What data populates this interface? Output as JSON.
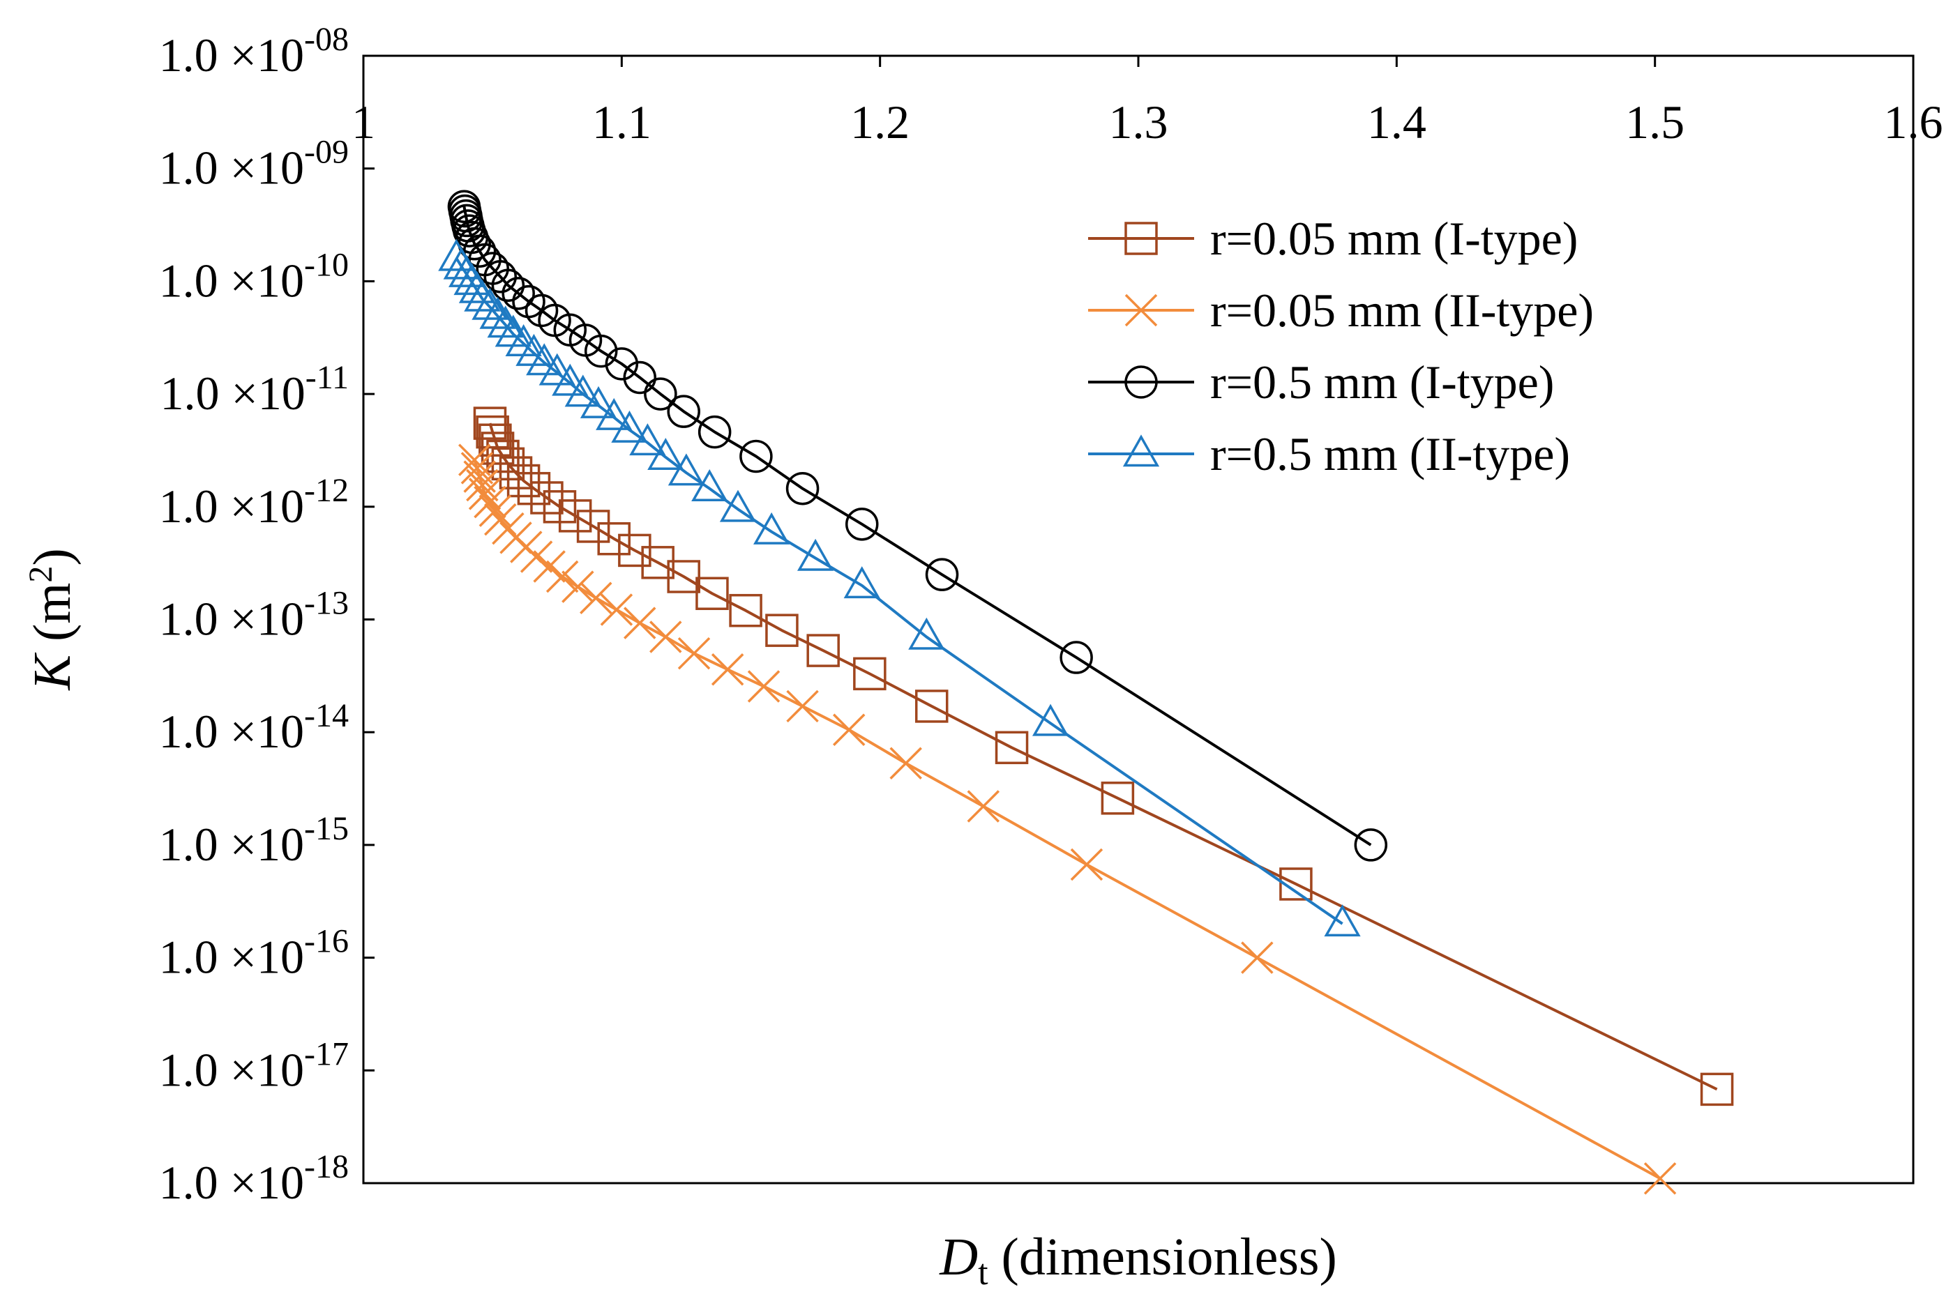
{
  "chart_data": {
    "type": "line",
    "title": "",
    "xlabel": {
      "main": "D",
      "sub": "t",
      "rest": " (dimensionless)"
    },
    "ylabel": {
      "main": "K",
      "rest": " (m",
      "sup": "2",
      "close": ")"
    },
    "x_axis_position": "top",
    "xlim": [
      1.0,
      1.6
    ],
    "ylim_log10": [
      -18,
      -8
    ],
    "x_ticks": [
      {
        "value": 1.0,
        "label": "1"
      },
      {
        "value": 1.1,
        "label": "1.1"
      },
      {
        "value": 1.2,
        "label": "1.2"
      },
      {
        "value": 1.3,
        "label": "1.3"
      },
      {
        "value": 1.4,
        "label": "1.4"
      },
      {
        "value": 1.5,
        "label": "1.5"
      },
      {
        "value": 1.6,
        "label": "1.6"
      }
    ],
    "y_ticks": [
      {
        "exp": -8,
        "mant": "1.0 ×10",
        "sup": "-08"
      },
      {
        "exp": -9,
        "mant": "1.0 ×10",
        "sup": "-09"
      },
      {
        "exp": -10,
        "mant": "1.0 ×10",
        "sup": "-10"
      },
      {
        "exp": -11,
        "mant": "1.0 ×10",
        "sup": "-11"
      },
      {
        "exp": -12,
        "mant": "1.0 ×10",
        "sup": "-12"
      },
      {
        "exp": -13,
        "mant": "1.0 ×10",
        "sup": "-13"
      },
      {
        "exp": -14,
        "mant": "1.0 ×10",
        "sup": "-14"
      },
      {
        "exp": -15,
        "mant": "1.0 ×10",
        "sup": "-15"
      },
      {
        "exp": -16,
        "mant": "1.0 ×10",
        "sup": "-16"
      },
      {
        "exp": -17,
        "mant": "1.0 ×10",
        "sup": "-17"
      },
      {
        "exp": -18,
        "mant": "1.0 ×10",
        "sup": "-18"
      }
    ],
    "legend_position": "top-right",
    "series": [
      {
        "name": "r=0.05 mm (I-type)",
        "color": "#a0461e",
        "marker": "square",
        "x": [
          1.049,
          1.05,
          1.051,
          1.052,
          1.054,
          1.056,
          1.059,
          1.062,
          1.066,
          1.071,
          1.076,
          1.082,
          1.089,
          1.097,
          1.105,
          1.114,
          1.124,
          1.135,
          1.148,
          1.162,
          1.178,
          1.196,
          1.22,
          1.251,
          1.292,
          1.361,
          1.524
        ],
        "y": [
          5.5e-12,
          4.6e-12,
          3.9e-12,
          3.3e-12,
          2.8e-12,
          2.4e-12,
          2e-12,
          1.7e-12,
          1.45e-12,
          1.2e-12,
          1e-12,
          8.3e-13,
          6.7e-13,
          5.2e-13,
          4.1e-13,
          3.2e-13,
          2.4e-13,
          1.7e-13,
          1.2e-13,
          8e-14,
          5.3e-14,
          3.3e-14,
          1.7e-14,
          7.3e-15,
          2.6e-15,
          4.5e-16,
          6.8e-18
        ]
      },
      {
        "name": "r=0.05 mm (II-type)",
        "color": "#f28c3c",
        "marker": "x",
        "x": [
          1.043,
          1.044,
          1.045,
          1.046,
          1.047,
          1.049,
          1.051,
          1.053,
          1.056,
          1.059,
          1.063,
          1.067,
          1.072,
          1.077,
          1.083,
          1.09,
          1.098,
          1.107,
          1.117,
          1.128,
          1.141,
          1.155,
          1.17,
          1.188,
          1.21,
          1.24,
          1.28,
          1.346,
          1.502
        ],
        "y": [
          2.6e-12,
          2.2e-12,
          1.85e-12,
          1.55e-12,
          1.3e-12,
          1.1e-12,
          9.2e-13,
          7.7e-13,
          6.4e-13,
          5.3e-13,
          4.4e-13,
          3.6e-13,
          2.95e-13,
          2.4e-13,
          1.95e-13,
          1.55e-13,
          1.22e-13,
          9.3e-14,
          7e-14,
          5e-14,
          3.6e-14,
          2.55e-14,
          1.7e-14,
          1.05e-14,
          5.3e-15,
          2.2e-15,
          6.7e-16,
          1e-16,
          1.1e-18
        ]
      },
      {
        "name": "r=0.5 mm (I-type)",
        "color": "#000000",
        "marker": "circle",
        "x": [
          1.039,
          1.0393,
          1.0397,
          1.04,
          1.0405,
          1.041,
          1.042,
          1.043,
          1.045,
          1.047,
          1.05,
          1.053,
          1.056,
          1.06,
          1.064,
          1.069,
          1.074,
          1.08,
          1.086,
          1.092,
          1.1,
          1.107,
          1.115,
          1.124,
          1.136,
          1.152,
          1.17,
          1.193,
          1.224,
          1.276,
          1.39
        ],
        "y": [
          4.6e-10,
          4.2e-10,
          3.8e-10,
          3.45e-10,
          3.1e-10,
          2.8e-10,
          2.45e-10,
          2.15e-10,
          1.85e-10,
          1.55e-10,
          1.3e-10,
          1.1e-10,
          9.2e-11,
          7.8e-11,
          6.6e-11,
          5.5e-11,
          4.5e-11,
          3.7e-11,
          3e-11,
          2.4e-11,
          1.85e-11,
          1.4e-11,
          1e-11,
          7e-12,
          4.6e-12,
          2.8e-12,
          1.45e-12,
          7e-13,
          2.5e-13,
          4.6e-14,
          1e-15
        ]
      },
      {
        "name": "r=0.5 mm (II-type)",
        "color": "#1f7ac2",
        "marker": "triangle",
        "x": [
          1.036,
          1.038,
          1.04,
          1.042,
          1.044,
          1.046,
          1.049,
          1.052,
          1.055,
          1.058,
          1.062,
          1.066,
          1.07,
          1.075,
          1.08,
          1.085,
          1.091,
          1.097,
          1.103,
          1.11,
          1.117,
          1.125,
          1.134,
          1.145,
          1.158,
          1.175,
          1.193,
          1.218,
          1.266,
          1.379
        ],
        "y": [
          1.6e-10,
          1.35e-10,
          1.15e-10,
          9.8e-11,
          8.3e-11,
          7e-11,
          5.9e-11,
          4.9e-11,
          4.1e-11,
          3.4e-11,
          2.8e-11,
          2.3e-11,
          1.9e-11,
          1.55e-11,
          1.25e-11,
          1e-11,
          7.9e-12,
          6.2e-12,
          4.8e-12,
          3.7e-12,
          2.75e-12,
          2e-12,
          1.45e-12,
          9.5e-13,
          6e-13,
          3.5e-13,
          2e-13,
          7e-14,
          1.2e-14,
          2e-16
        ]
      }
    ]
  }
}
